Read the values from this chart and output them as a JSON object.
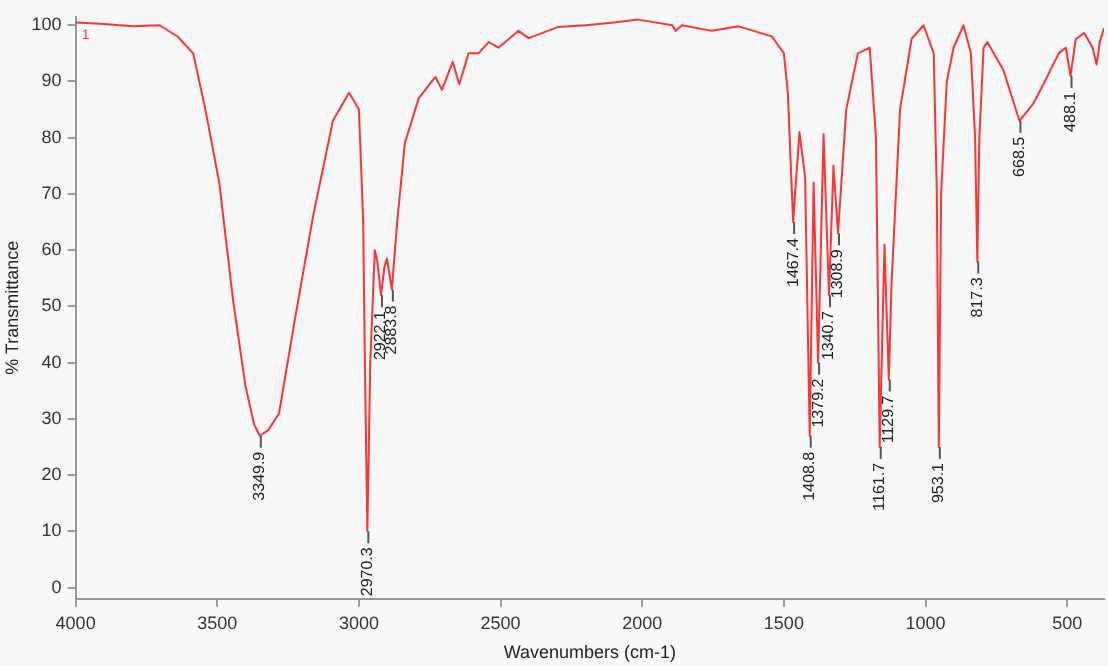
{
  "chart_data": {
    "type": "line",
    "xlabel": "Wavenumbers (cm-1)",
    "ylabel": "% Transmittance",
    "xlim": [
      4000,
      370
    ],
    "xticks": [
      4000,
      3500,
      3000,
      2500,
      2000,
      1500,
      1000,
      500
    ],
    "ylim": [
      -2,
      101.5
    ],
    "yticks": [
      0,
      10,
      20,
      30,
      40,
      50,
      60,
      70,
      80,
      90,
      100
    ],
    "grid": false,
    "legend": false,
    "marker": "none",
    "line_style": "solid",
    "x": [
      4000,
      3900,
      3800,
      3704,
      3640,
      3585,
      3542,
      3493,
      3444,
      3401,
      3370,
      3349.9,
      3320,
      3282,
      3225,
      3162,
      3092,
      3035,
      3000,
      2985,
      2979,
      2970.3,
      2960,
      2944,
      2935,
      2922.1,
      2910,
      2901,
      2883.8,
      2865,
      2838,
      2789,
      2730,
      2707,
      2669,
      2646,
      2613,
      2578,
      2542,
      2507,
      2437,
      2401,
      2296,
      2200,
      2100,
      2014,
      1894,
      1882,
      1860,
      1754,
      1660,
      1542,
      1500,
      1486,
      1467.4,
      1445,
      1425,
      1408.8,
      1395,
      1379.2,
      1360,
      1340.7,
      1325,
      1308.9,
      1280,
      1239,
      1197,
      1175,
      1161.7,
      1145,
      1129.7,
      1120,
      1090,
      1049,
      1007,
      971,
      960,
      953.1,
      945,
      925,
      901,
      866,
      840,
      825,
      817.3,
      810,
      795,
      782,
      725,
      668.5,
      620,
      584,
      530,
      505,
      488.1,
      470,
      440,
      410,
      396,
      385,
      370
    ],
    "series": [
      {
        "name": "1",
        "color": "#ff3333",
        "values": [
          100.5,
          100.2,
          99.8,
          100,
          98,
          95,
          85,
          72,
          51,
          36,
          29,
          27,
          28,
          31,
          48,
          66,
          83,
          88,
          85,
          65,
          40,
          10,
          40,
          60,
          58,
          52,
          57,
          58.5,
          53,
          65,
          79,
          87,
          90.8,
          88.5,
          93.5,
          89.5,
          95,
          95,
          97,
          96,
          99,
          97.7,
          99.7,
          100,
          100.5,
          101,
          100,
          99,
          100,
          99,
          99.8,
          98,
          95,
          88,
          65,
          81,
          73,
          27,
          72,
          40,
          80.6,
          52,
          75,
          63,
          85,
          95,
          96,
          80,
          25,
          61,
          37,
          54,
          85,
          97.6,
          100,
          95,
          70,
          25,
          70,
          90,
          96,
          100,
          95,
          80,
          58,
          80,
          96,
          97,
          92,
          83,
          86,
          89.5,
          95,
          96,
          91,
          97.5,
          98.6,
          96,
          93,
          97,
          99.5
        ]
      }
    ],
    "annotations": [
      {
        "text": "3349.9",
        "x": 3349.9,
        "y": 27
      },
      {
        "text": "2970.3",
        "x": 2970.3,
        "y": 10
      },
      {
        "text": "2922.1",
        "x": 2922.1,
        "y": 52
      },
      {
        "text": "2883.8",
        "x": 2883.8,
        "y": 53
      },
      {
        "text": "1467.4",
        "x": 1467.4,
        "y": 65
      },
      {
        "text": "1408.8",
        "x": 1408.8,
        "y": 27
      },
      {
        "text": "1379.2",
        "x": 1379.2,
        "y": 40
      },
      {
        "text": "1340.7",
        "x": 1340.7,
        "y": 52
      },
      {
        "text": "1308.9",
        "x": 1308.9,
        "y": 63
      },
      {
        "text": "1161.7",
        "x": 1161.7,
        "y": 25
      },
      {
        "text": "1129.7",
        "x": 1129.7,
        "y": 37
      },
      {
        "text": "953.1",
        "x": 953.1,
        "y": 25
      },
      {
        "text": "817.3",
        "x": 817.3,
        "y": 58
      },
      {
        "text": "668.5",
        "x": 668.5,
        "y": 83
      },
      {
        "text": "488.1",
        "x": 488.1,
        "y": 91
      }
    ]
  }
}
